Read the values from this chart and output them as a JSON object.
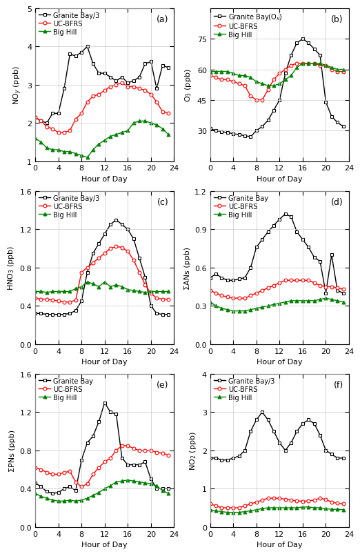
{
  "panel_a": {
    "label": "(a)",
    "ylabel": "NO$_y$ (ppb)",
    "ylim": [
      1,
      5
    ],
    "yticks": [
      1,
      2,
      3,
      4,
      5
    ],
    "legend_labels": [
      "Granite Bay/3",
      "UC-BFRS",
      "Big Hill"
    ],
    "black": [
      2.15,
      2.05,
      2.0,
      2.25,
      2.25,
      2.9,
      3.8,
      3.75,
      3.85,
      4.0,
      3.55,
      3.3,
      3.3,
      3.2,
      3.1,
      3.2,
      3.05,
      3.1,
      3.2,
      3.55,
      3.6,
      2.9,
      3.5,
      3.45
    ],
    "red": [
      2.15,
      2.05,
      1.9,
      1.85,
      1.75,
      1.75,
      1.8,
      2.1,
      2.25,
      2.55,
      2.7,
      2.75,
      2.85,
      2.95,
      3.0,
      3.05,
      2.95,
      2.95,
      2.9,
      2.85,
      2.75,
      2.55,
      2.3,
      2.25
    ],
    "green": [
      1.6,
      1.5,
      1.35,
      1.3,
      1.3,
      1.25,
      1.25,
      1.2,
      1.15,
      1.1,
      1.3,
      1.45,
      1.55,
      1.65,
      1.7,
      1.75,
      1.8,
      2.0,
      2.05,
      2.05,
      2.0,
      1.95,
      1.85,
      1.7
    ]
  },
  "panel_b": {
    "label": "(b)",
    "ylabel": "O$_3$ (ppb)",
    "ylim": [
      15,
      90
    ],
    "yticks": [
      30,
      45,
      60,
      75
    ],
    "legend_labels": [
      "Granite Bay(O$_x$)",
      "UC-BFRS",
      "Big Hill"
    ],
    "black": [
      31,
      30,
      29.5,
      29,
      28.5,
      28,
      27.5,
      27,
      30,
      32,
      35,
      40,
      45,
      58,
      67,
      73,
      75,
      73,
      70,
      67,
      44,
      37,
      34,
      32
    ],
    "red": [
      57,
      56,
      55,
      55,
      54,
      53,
      52,
      47,
      45,
      45,
      50,
      55,
      58,
      60,
      62,
      63,
      63,
      63,
      63,
      62,
      62,
      60,
      59,
      59
    ],
    "green": [
      59,
      59,
      59,
      59,
      58,
      57,
      57,
      56,
      54,
      53,
      52,
      52,
      53,
      55,
      57,
      61,
      63,
      63,
      63,
      63,
      62,
      61,
      60,
      60
    ]
  },
  "panel_c": {
    "label": "(c)",
    "ylabel": "HNO$_3$ (ppb)",
    "ylim": [
      0.0,
      1.6
    ],
    "yticks": [
      0.0,
      0.4,
      0.8,
      1.2,
      1.6
    ],
    "legend_labels": [
      "Granite Bay/3",
      "UC-BFRS",
      "Big Hill"
    ],
    "black": [
      0.32,
      0.32,
      0.31,
      0.31,
      0.31,
      0.31,
      0.32,
      0.35,
      0.45,
      0.75,
      0.95,
      1.05,
      1.15,
      1.25,
      1.3,
      1.25,
      1.2,
      1.1,
      0.9,
      0.7,
      0.4,
      0.32,
      0.31,
      0.31
    ],
    "red": [
      0.48,
      0.47,
      0.47,
      0.46,
      0.45,
      0.44,
      0.44,
      0.46,
      0.75,
      0.8,
      0.85,
      0.9,
      0.95,
      1.0,
      1.02,
      1.01,
      0.97,
      0.88,
      0.75,
      0.62,
      0.53,
      0.48,
      0.47,
      0.47
    ],
    "green": [
      0.55,
      0.55,
      0.54,
      0.55,
      0.55,
      0.55,
      0.55,
      0.58,
      0.6,
      0.65,
      0.63,
      0.6,
      0.65,
      0.6,
      0.62,
      0.6,
      0.57,
      0.56,
      0.55,
      0.54,
      0.55,
      0.55,
      0.55,
      0.55
    ]
  },
  "panel_d": {
    "label": "(d)",
    "ylabel": "ΣANs (ppb)",
    "ylim": [
      0.0,
      1.2
    ],
    "yticks": [
      0.0,
      0.3,
      0.6,
      0.9,
      1.2
    ],
    "legend_labels": [
      "Granite Bay",
      "UC-BFRS",
      "Big Hill"
    ],
    "black": [
      0.52,
      0.55,
      0.52,
      0.5,
      0.5,
      0.51,
      0.52,
      0.6,
      0.76,
      0.82,
      0.88,
      0.93,
      0.98,
      1.02,
      1.0,
      0.88,
      0.82,
      0.76,
      0.68,
      0.65,
      0.4,
      0.7,
      0.42,
      0.4
    ],
    "red": [
      0.42,
      0.4,
      0.38,
      0.37,
      0.36,
      0.36,
      0.36,
      0.38,
      0.4,
      0.42,
      0.44,
      0.46,
      0.48,
      0.5,
      0.5,
      0.5,
      0.5,
      0.5,
      0.48,
      0.46,
      0.45,
      0.45,
      0.44,
      0.43
    ],
    "green": [
      0.33,
      0.3,
      0.28,
      0.27,
      0.26,
      0.26,
      0.26,
      0.27,
      0.28,
      0.29,
      0.3,
      0.31,
      0.32,
      0.33,
      0.34,
      0.34,
      0.34,
      0.34,
      0.34,
      0.35,
      0.36,
      0.35,
      0.34,
      0.33
    ]
  },
  "panel_e": {
    "label": "(e)",
    "ylabel": "ΣPNs (ppb)",
    "ylim": [
      0.0,
      1.6
    ],
    "yticks": [
      0.0,
      0.4,
      0.8,
      1.2,
      1.6
    ],
    "legend_labels": [
      "Granite Bay",
      "UC-BFRS",
      "Big Hill"
    ],
    "black": [
      0.46,
      0.42,
      0.37,
      0.35,
      0.36,
      0.4,
      0.42,
      0.38,
      0.7,
      0.88,
      0.95,
      1.1,
      1.3,
      1.2,
      1.18,
      0.72,
      0.65,
      0.65,
      0.65,
      0.68,
      0.5,
      0.4,
      0.4,
      0.4
    ],
    "red": [
      0.62,
      0.6,
      0.57,
      0.55,
      0.55,
      0.57,
      0.58,
      0.47,
      0.42,
      0.45,
      0.55,
      0.62,
      0.68,
      0.72,
      0.8,
      0.85,
      0.85,
      0.82,
      0.8,
      0.8,
      0.8,
      0.78,
      0.77,
      0.75
    ],
    "green": [
      0.35,
      0.32,
      0.3,
      0.28,
      0.27,
      0.27,
      0.28,
      0.27,
      0.28,
      0.3,
      0.33,
      0.36,
      0.4,
      0.43,
      0.47,
      0.48,
      0.49,
      0.48,
      0.47,
      0.46,
      0.45,
      0.43,
      0.38,
      0.35
    ]
  },
  "panel_f": {
    "label": "(f)",
    "ylabel": "NO$_2$ (ppb)",
    "ylim": [
      0,
      4
    ],
    "yticks": [
      0,
      1,
      2,
      3,
      4
    ],
    "legend_labels": [
      "Granite Bay/3",
      "UC-BFRS",
      "Big Hill"
    ],
    "black": [
      1.8,
      1.8,
      1.75,
      1.75,
      1.8,
      1.85,
      2.0,
      2.5,
      2.8,
      3.0,
      2.8,
      2.5,
      2.2,
      2.0,
      2.2,
      2.5,
      2.7,
      2.8,
      2.7,
      2.4,
      2.0,
      1.9,
      1.8,
      1.8
    ],
    "red": [
      0.6,
      0.55,
      0.5,
      0.5,
      0.5,
      0.5,
      0.55,
      0.6,
      0.65,
      0.7,
      0.75,
      0.75,
      0.75,
      0.72,
      0.7,
      0.68,
      0.67,
      0.68,
      0.7,
      0.75,
      0.72,
      0.65,
      0.62,
      0.6
    ],
    "green": [
      0.45,
      0.42,
      0.4,
      0.38,
      0.38,
      0.38,
      0.4,
      0.42,
      0.45,
      0.48,
      0.5,
      0.5,
      0.5,
      0.5,
      0.5,
      0.5,
      0.52,
      0.52,
      0.5,
      0.5,
      0.48,
      0.46,
      0.46,
      0.45
    ]
  },
  "colors": {
    "black": "#000000",
    "red": "#FF0000",
    "green": "#008000"
  },
  "xlabel": "Hour of Day",
  "xlim": [
    0,
    24
  ],
  "xticks": [
    0,
    4,
    8,
    12,
    16,
    20,
    24
  ]
}
